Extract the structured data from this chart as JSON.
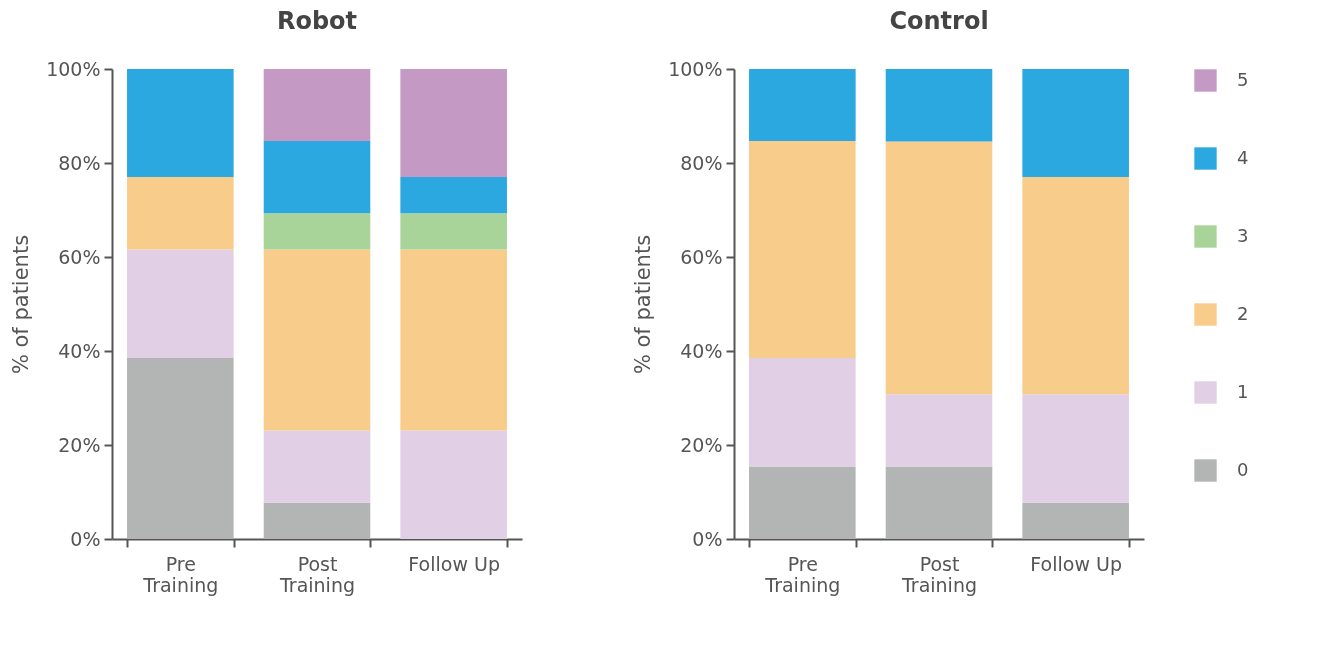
{
  "chart_data": [
    {
      "type": "bar",
      "title": "Robot",
      "ylabel": "% of patients",
      "stacked": true,
      "legend": false,
      "grid": false,
      "categories": [
        "Pre Training",
        "Post Training",
        "Follow Up"
      ],
      "ylim": [
        0,
        100
      ],
      "yticks": [
        {
          "value": 0,
          "label": "0%"
        },
        {
          "value": 20,
          "label": "20%"
        },
        {
          "value": 40,
          "label": "40%"
        },
        {
          "value": 60,
          "label": "60%"
        },
        {
          "value": 80,
          "label": "80%"
        },
        {
          "value": 100,
          "label": "100%"
        }
      ],
      "series": [
        {
          "color": "#b3b5b4",
          "values": [
            38.5,
            7.7,
            null
          ]
        },
        {
          "color": "#e1cfe5",
          "values": [
            23.1,
            15.4,
            23.1
          ]
        },
        {
          "color": "#f8cc8a",
          "values": [
            15.4,
            38.5,
            38.5
          ]
        },
        {
          "color": "#a8d49a",
          "values": [
            null,
            7.7,
            7.7
          ]
        },
        {
          "color": "#2ba8e0",
          "values": [
            23.0,
            15.4,
            7.7
          ]
        },
        {
          "color": "#c49ac4",
          "values": [
            null,
            15.3,
            23.0
          ]
        }
      ]
    },
    {
      "type": "bar",
      "title": "Control",
      "ylabel": "% of patients",
      "stacked": true,
      "legend": "right",
      "grid": false,
      "categories": [
        "Pre Training",
        "Post Training",
        "Follow Up"
      ],
      "ylim": [
        0,
        100
      ],
      "yticks": [
        {
          "value": 0,
          "label": "0%"
        },
        {
          "value": 20,
          "label": "20%"
        },
        {
          "value": 40,
          "label": "40%"
        },
        {
          "value": 60,
          "label": "60%"
        },
        {
          "value": 80,
          "label": "80%"
        },
        {
          "value": 100,
          "label": "100%"
        }
      ],
      "series": [
        {
          "name": "0",
          "color": "#b3b5b4",
          "values": [
            15.4,
            15.4,
            7.7
          ]
        },
        {
          "name": "1",
          "color": "#e1cfe5",
          "values": [
            23.1,
            15.4,
            23.1
          ]
        },
        {
          "name": "2",
          "color": "#f8cc8a",
          "values": [
            46.2,
            53.8,
            46.2
          ]
        },
        {
          "name": "3",
          "color": "#a8d49a",
          "values": [
            null,
            null,
            null
          ]
        },
        {
          "name": "4",
          "color": "#2ba8e0",
          "values": [
            15.3,
            15.4,
            23.0
          ]
        },
        {
          "name": "5",
          "color": "#c49ac4",
          "values": [
            null,
            null,
            null
          ]
        }
      ]
    }
  ]
}
